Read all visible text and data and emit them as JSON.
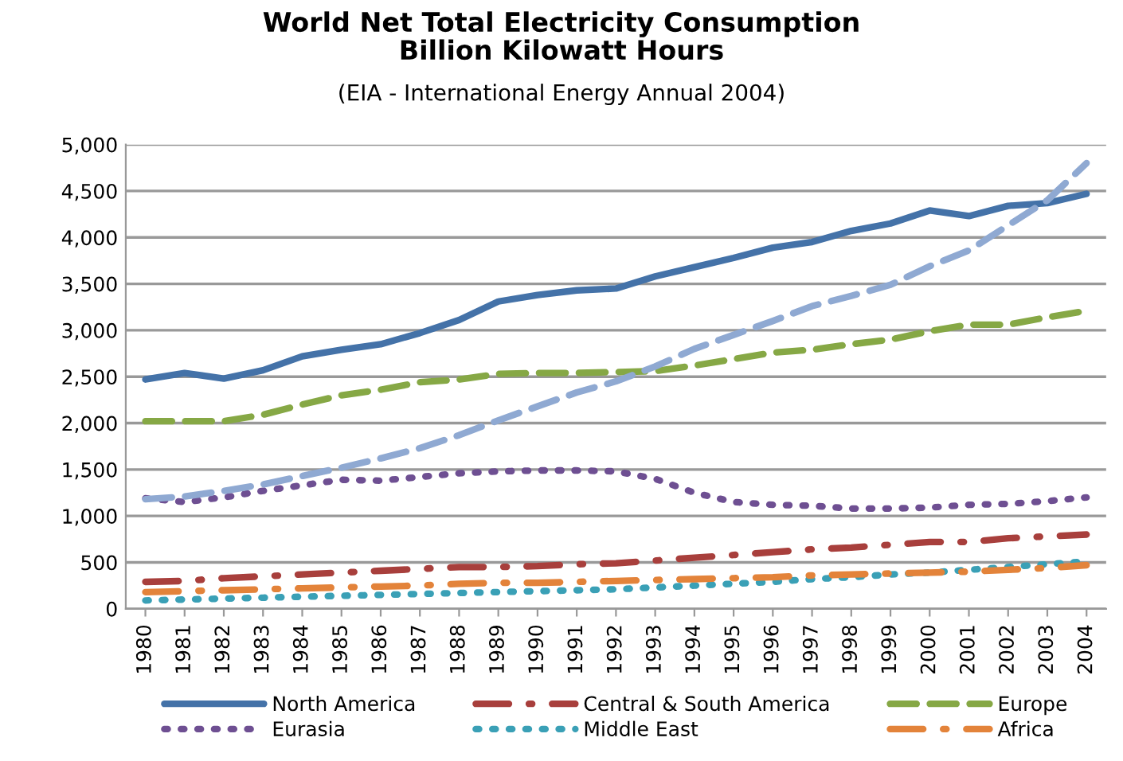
{
  "chart_data": {
    "type": "line",
    "title": "World Net Total Electricity Consumption\nBillion Kilowatt Hours",
    "subtitle": "(EIA - International Energy Annual 2004)",
    "categories": [
      "1980",
      "1981",
      "1982",
      "1983",
      "1984",
      "1985",
      "1986",
      "1987",
      "1988",
      "1989",
      "1990",
      "1991",
      "1992",
      "1993",
      "1994",
      "1995",
      "1996",
      "1997",
      "1998",
      "1999",
      "2000",
      "2001",
      "2002",
      "2003",
      "2004"
    ],
    "series": [
      {
        "name": "North America",
        "color": "#4472a8",
        "line_style": "solid",
        "values": [
          2470,
          2540,
          2480,
          2570,
          2720,
          2790,
          2850,
          2970,
          3110,
          3310,
          3380,
          3430,
          3450,
          3580,
          3680,
          3780,
          3890,
          3950,
          4070,
          4150,
          4290,
          4230,
          4340,
          4370,
          4470
        ]
      },
      {
        "name": "Central & South America",
        "color": "#a83f3c",
        "line_style": "dashdot",
        "values": [
          290,
          300,
          330,
          350,
          370,
          390,
          410,
          430,
          450,
          450,
          460,
          480,
          490,
          520,
          550,
          580,
          610,
          640,
          660,
          690,
          720,
          720,
          760,
          780,
          800
        ]
      },
      {
        "name": "Europe",
        "color": "#86a845",
        "line_style": "dashed",
        "values": [
          2020,
          2020,
          2020,
          2090,
          2200,
          2300,
          2360,
          2440,
          2470,
          2530,
          2540,
          2540,
          2550,
          2560,
          2620,
          2690,
          2760,
          2790,
          2850,
          2900,
          2990,
          3060,
          3060,
          3140,
          3210
        ]
      },
      {
        "name": "Eurasia",
        "color": "#6e4f92",
        "line_style": "dotted",
        "values": [
          1190,
          1150,
          1200,
          1270,
          1330,
          1390,
          1380,
          1420,
          1460,
          1480,
          1490,
          1490,
          1480,
          1400,
          1250,
          1150,
          1120,
          1110,
          1080,
          1080,
          1090,
          1120,
          1130,
          1160,
          1200
        ]
      },
      {
        "name": "Middle East",
        "color": "#3aa0b6",
        "line_style": "dotted",
        "values": [
          90,
          100,
          110,
          120,
          130,
          140,
          150,
          160,
          170,
          180,
          190,
          200,
          210,
          230,
          250,
          270,
          290,
          320,
          340,
          370,
          390,
          420,
          450,
          480,
          510
        ]
      },
      {
        "name": "Africa",
        "color": "#e3833a",
        "line_style": "dashdot",
        "values": [
          180,
          190,
          200,
          210,
          220,
          230,
          240,
          250,
          270,
          280,
          280,
          290,
          300,
          310,
          320,
          330,
          340,
          360,
          370,
          380,
          390,
          400,
          420,
          440,
          470
        ]
      },
      {
        "color": "#8fa9d2",
        "line_style": "dashed",
        "values": [
          1180,
          1210,
          1270,
          1340,
          1430,
          1520,
          1620,
          1730,
          1870,
          2030,
          2180,
          2330,
          2450,
          2610,
          2800,
          2950,
          3100,
          3260,
          3370,
          3490,
          3690,
          3860,
          4130,
          4400,
          4800
        ]
      }
    ],
    "ylim": [
      0,
      5000
    ],
    "yticks": [
      0,
      {
        "value": 500,
        "label": "500"
      },
      {
        "value": 1000,
        "label": "1,000"
      },
      {
        "value": 1500,
        "label": "1,500"
      },
      {
        "value": 2000,
        "label": "2,000"
      },
      {
        "value": 2500,
        "label": "2,500"
      },
      {
        "value": 3000,
        "label": "3,000"
      },
      {
        "value": 3500,
        "label": "3,500"
      },
      {
        "value": 4000,
        "label": "4,000"
      },
      {
        "value": 4500,
        "label": "4,500"
      },
      {
        "value": 5000,
        "label": "5,000"
      }
    ],
    "grid": "y",
    "legend": "bottom"
  }
}
